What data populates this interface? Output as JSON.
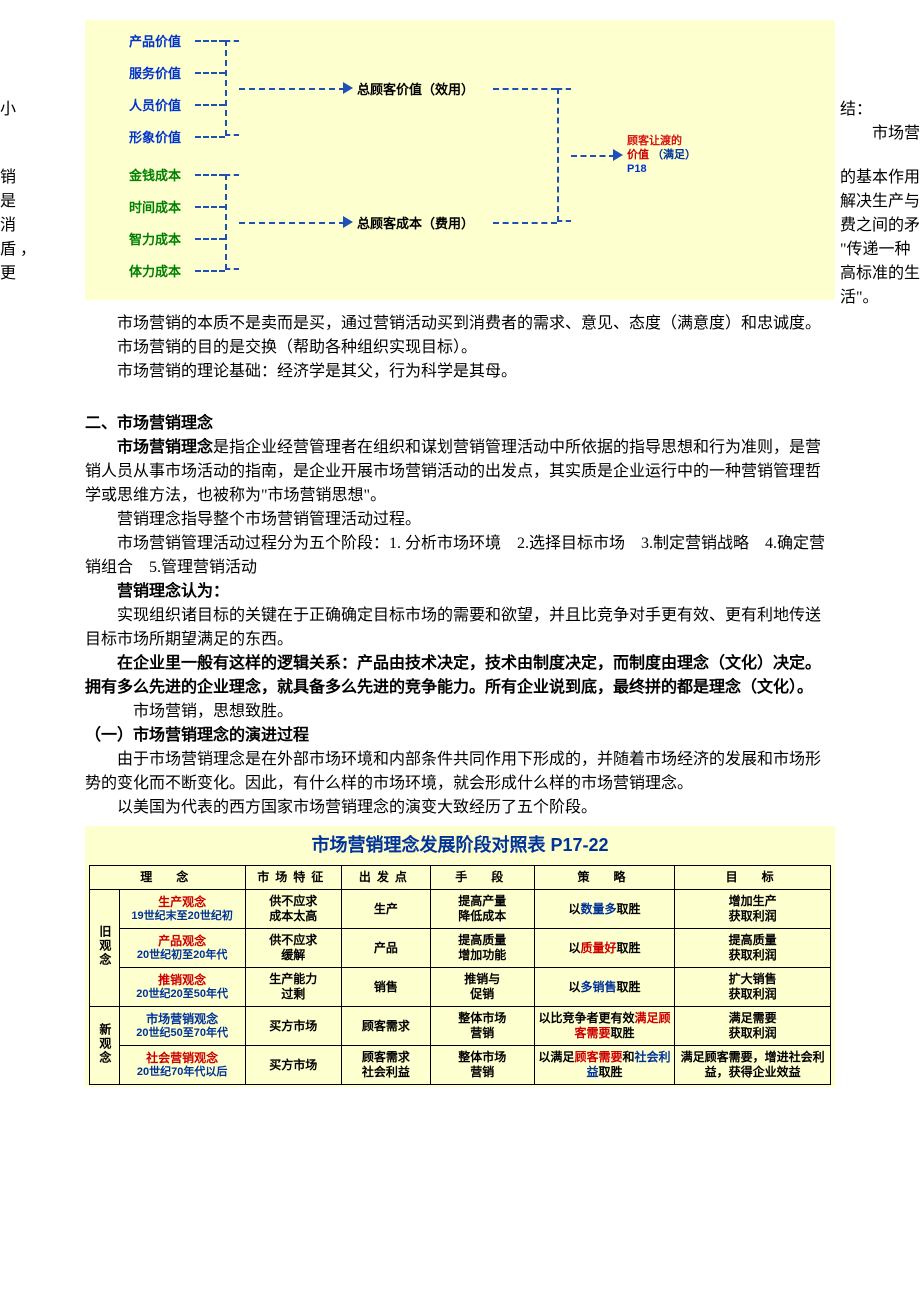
{
  "diagram": {
    "bg": "#feffcf",
    "value_items": [
      "产品价值",
      "服务价值",
      "人员价值",
      "形象价值"
    ],
    "cost_items": [
      "金钱成本",
      "时间成本",
      "智力成本",
      "体力成本"
    ],
    "total_value": "总顾客价值（效用）",
    "total_cost": "总顾客成本（费用）",
    "result_l1": "顾客让渡的",
    "result_l2": "价值",
    "result_paren": "（满足）",
    "result_pg": "P18",
    "value_color": "#0033cc",
    "cost_color": "#008000",
    "line_color": "#1f50b5"
  },
  "wrap_side": {
    "left_xiao": "小",
    "right_jie": "结：",
    "right_p1a": "市场营",
    "left_p1": "销",
    "right_p1b": "的基本作用",
    "left_p2": "是",
    "right_p2": "解决生产与",
    "left_p3": "消",
    "right_p3": "费之间的矛",
    "left_p4": "盾 ，",
    "right_p4": "\"传递一种",
    "left_p5": "更",
    "right_p5": "高标准的生",
    "right_p6": "活\"。"
  },
  "para": {
    "p2": "市场营销的本质不是卖而是买，通过营销活动买到消费者的需求、意见、态度（满意度）和忠诚度。",
    "p3": "市场营销的目的是交换（帮助各种组织实现目标）。",
    "p4": "市场营销的理论基础：经济学是其父，行为科学是其母。"
  },
  "sec2": {
    "h": "二、市场营销理念",
    "p1_b": "市场营销理念",
    "p1_rest": "是指企业经营管理者在组织和谋划营销管理活动中所依据的指导思想和行为准则，是营销人员从事市场活动的指南，是企业开展市场营销活动的出发点，其实质是企业运行中的一种营销管理哲学或思维方法，也被称为\"市场营销思想\"。",
    "p2": "营销理念指导整个市场营销管理活动过程。",
    "p3": "市场营销管理活动过程分为五个阶段：1. 分析市场环境　2.选择目标市场　3.制定营销战略　4.确定营销组合　5.管理营销活动",
    "p4_b": "营销理念认为：",
    "p5": "实现组织诸目标的关键在于正确确定目标市场的需要和欲望，并且比竞争对手更有效、更有利地传送目标市场所期望满足的东西。",
    "p6_b": "在企业里一般有这样的逻辑关系：产品由技术决定，技术由制度决定，而制度由理念（文化）决定。拥有多么先进的企业理念，就具备多么先进的竞争能力。所有企业说到底，最终拼的都是理念（文化）。",
    "p7": "市场营销，思想致胜。",
    "sub1_h": "（一）市场营销理念的演进过程",
    "sub1_p1": "由于市场营销理念是在外部市场环境和内部条件共同作用下形成的，并随着市场经济的发展和市场形势的变化而不断变化。因此，有什么样的市场环境，就会形成什么样的市场营销理念。",
    "sub1_p2": "以美国为代表的西方国家市场营销理念的演变大致经历了五个阶段。"
  },
  "table": {
    "title": "市场营销理念发展阶段对照表",
    "title_pg": "P17-22",
    "headers": [
      "理　念",
      "市场特征",
      "出发点",
      "手　段",
      "策　略",
      "目　标"
    ],
    "col_widths": [
      "4%",
      "17%",
      "13%",
      "12%",
      "14%",
      "19%",
      "21%"
    ],
    "groups": [
      {
        "label": "旧观念",
        "rows": [
          {
            "name": "生产观念",
            "era": "19世纪末至20世纪初",
            "feat": "供不应求\n成本太高",
            "start": "生产",
            "means": "提高产量\n降低成本",
            "strategy_pre": "以",
            "strategy_kw": "数量多",
            "strategy_kw_color": "blue",
            "strategy_post": "取胜",
            "goal": "增加生产\n获取利润"
          },
          {
            "name": "产品观念",
            "era": "20世纪初至20年代",
            "feat": "供不应求\n缓解",
            "start": "产品",
            "means": "提高质量\n增加功能",
            "strategy_pre": "以",
            "strategy_kw": "质量好",
            "strategy_kw_color": "red",
            "strategy_post": "取胜",
            "goal": "提高质量\n获取利润"
          },
          {
            "name": "推销观念",
            "era": "20世纪20至50年代",
            "feat": "生产能力\n过剩",
            "start": "销售",
            "means": "推销与\n促销",
            "strategy_pre": "以",
            "strategy_kw": "多销售",
            "strategy_kw_color": "blue",
            "strategy_post": "取胜",
            "goal": "扩大销售\n获取利润"
          }
        ]
      },
      {
        "label": "新观念",
        "rows": [
          {
            "name": "市场营销观念",
            "era": "20世纪50至70年代",
            "name_color": "blue",
            "feat": "买方市场",
            "start": "顾客需求",
            "means": "整体市场\n营销",
            "strategy_full_html": true,
            "strategy_html": "以比竞争者更有效<span class=\"kw-red\">满足顾客需要</span>取胜",
            "goal": "满足需要\n获取利润"
          },
          {
            "name": "社会营销观念",
            "era": "20世纪70年代以后",
            "name_color": "red",
            "feat": "买方市场",
            "start": "顾客需求\n社会利益",
            "means": "整体市场\n营销",
            "strategy_full_html": true,
            "strategy_html": "以满足<span class=\"kw-red\">顾客需要</span>和<span class=\"kw-blue\">社会利益</span>取胜",
            "goal": "满足顾客需要，增进社会利益，获得企业效益"
          }
        ]
      }
    ]
  }
}
